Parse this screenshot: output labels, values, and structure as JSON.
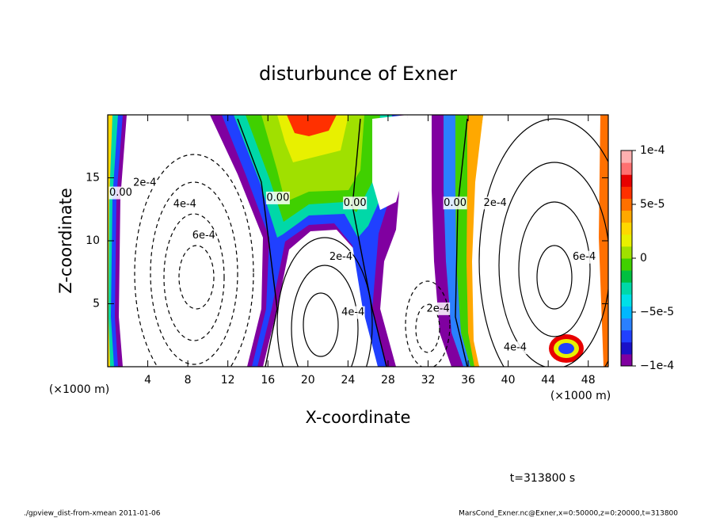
{
  "chart_data": {
    "type": "contour",
    "title": "disturbunce of Exner",
    "x_label": "X-coordinate",
    "y_label": "Z-coordinate",
    "x_unit": "(×1000 m)",
    "y_unit": "(×1000 m)",
    "time_label": "t=313800 s",
    "footer_left": "./gpview_dist-from-xmean  2011-01-06",
    "footer_right": "MarsCond_Exner.nc@Exner,x=0:50000,z=0:20000,t=313800",
    "xlim": [
      0,
      50
    ],
    "xticks": [
      4,
      8,
      12,
      16,
      20,
      24,
      28,
      32,
      36,
      40,
      44,
      48
    ],
    "ylim": [
      0,
      20
    ],
    "yticks": [
      5,
      10,
      15
    ],
    "colorbar": {
      "lim": [
        -0.0001,
        0.0001
      ],
      "ticks": [
        {
          "value": 0.0001,
          "label": "1e-4"
        },
        {
          "value": 5e-05,
          "label": "5e-5"
        },
        {
          "value": 0,
          "label": "0"
        },
        {
          "value": -5e-05,
          "label": "−5e-5"
        },
        {
          "value": -0.0001,
          "label": "−1e-4"
        }
      ],
      "colors": [
        "#8000a0",
        "#1a10c8",
        "#2040ff",
        "#2a80ff",
        "#00b8ff",
        "#00e0e8",
        "#00d8a8",
        "#00c040",
        "#40d000",
        "#a0e000",
        "#e8f000",
        "#ffd800",
        "#ffa800",
        "#ff7000",
        "#ff3000",
        "#e80000",
        "#ff7070",
        "#ffb0b0"
      ]
    },
    "annotations": [
      {
        "text": "0.00",
        "x": 1.3,
        "z": 13.8
      },
      {
        "text": "2e-4",
        "x": 3.7,
        "z": 14.6
      },
      {
        "text": "4e-4",
        "x": 7.7,
        "z": 12.9
      },
      {
        "text": "6e-4",
        "x": 9.6,
        "z": 10.4
      },
      {
        "text": "0.00",
        "x": 17,
        "z": 13.4
      },
      {
        "text": "0.00",
        "x": 24.7,
        "z": 13
      },
      {
        "text": "2e-4",
        "x": 23.3,
        "z": 8.7
      },
      {
        "text": "4e-4",
        "x": 24.5,
        "z": 4.3
      },
      {
        "text": "2e-4",
        "x": 33,
        "z": 4.6
      },
      {
        "text": "0.00",
        "x": 34.7,
        "z": 13
      },
      {
        "text": "2e-4",
        "x": 38.7,
        "z": 13
      },
      {
        "text": "6e-4",
        "x": 47.6,
        "z": 8.7
      },
      {
        "text": "4e-4",
        "x": 40.7,
        "z": 1.5
      }
    ]
  }
}
